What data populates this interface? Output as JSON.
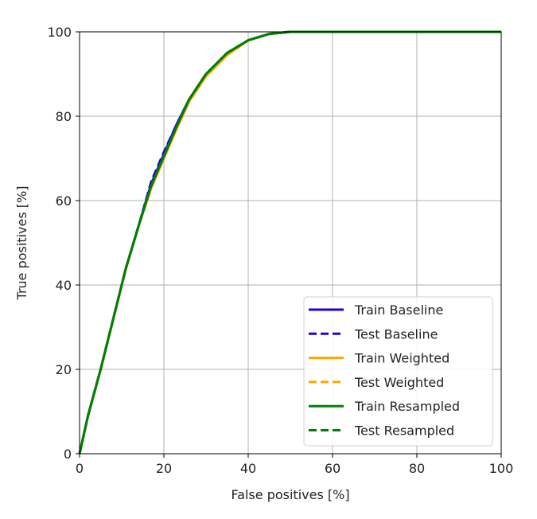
{
  "chart_data": {
    "type": "line",
    "title": "",
    "xlabel": "False positives [%]",
    "ylabel": "True positives [%]",
    "xlim": [
      0,
      100
    ],
    "ylim": [
      0,
      100
    ],
    "xticks": [
      "0",
      "20",
      "40",
      "60",
      "80",
      "100"
    ],
    "yticks": [
      "0",
      "20",
      "40",
      "60",
      "80",
      "100"
    ],
    "grid": true,
    "legend_position": "lower right",
    "series": [
      {
        "name": "Train Baseline",
        "color": "#1f00e6",
        "dash": "solid",
        "points": [
          [
            0,
            0
          ],
          [
            2,
            9
          ],
          [
            5,
            20
          ],
          [
            8,
            32
          ],
          [
            11,
            44
          ],
          [
            14,
            54
          ],
          [
            17,
            64
          ],
          [
            20,
            71
          ],
          [
            23,
            78
          ],
          [
            26,
            84
          ],
          [
            30,
            90
          ],
          [
            35,
            95
          ],
          [
            40,
            98
          ],
          [
            45,
            99.5
          ],
          [
            50,
            100
          ],
          [
            60,
            100
          ],
          [
            80,
            100
          ],
          [
            100,
            100
          ]
        ]
      },
      {
        "name": "Test Baseline",
        "color": "#1f00e6",
        "dash": "dashed",
        "points": [
          [
            0,
            0
          ],
          [
            2,
            9
          ],
          [
            5,
            20
          ],
          [
            8,
            32
          ],
          [
            11,
            44
          ],
          [
            14,
            54
          ],
          [
            17,
            64.5
          ],
          [
            20,
            71.5
          ],
          [
            23,
            78
          ],
          [
            26,
            84
          ],
          [
            30,
            90
          ],
          [
            35,
            95
          ],
          [
            40,
            98
          ],
          [
            45,
            99.5
          ],
          [
            50,
            100
          ],
          [
            60,
            100
          ],
          [
            80,
            100
          ],
          [
            100,
            100
          ]
        ]
      },
      {
        "name": "Train Weighted",
        "color": "#ffa500",
        "dash": "solid",
        "points": [
          [
            0,
            0
          ],
          [
            2,
            9
          ],
          [
            5,
            20
          ],
          [
            8,
            32
          ],
          [
            11,
            44
          ],
          [
            14,
            54
          ],
          [
            17,
            63
          ],
          [
            20,
            70
          ],
          [
            23,
            77
          ],
          [
            26,
            83.5
          ],
          [
            30,
            89.5
          ],
          [
            35,
            94.5
          ],
          [
            40,
            98
          ],
          [
            45,
            99.5
          ],
          [
            50,
            100
          ],
          [
            60,
            100
          ],
          [
            80,
            100
          ],
          [
            100,
            100
          ]
        ]
      },
      {
        "name": "Test Weighted",
        "color": "#ffa500",
        "dash": "dashed",
        "points": [
          [
            0,
            0
          ],
          [
            2,
            9
          ],
          [
            5,
            20
          ],
          [
            8,
            32
          ],
          [
            11,
            44
          ],
          [
            14,
            54
          ],
          [
            17,
            63
          ],
          [
            20,
            70
          ],
          [
            23,
            77
          ],
          [
            26,
            83.5
          ],
          [
            30,
            89.5
          ],
          [
            35,
            94.5
          ],
          [
            40,
            98
          ],
          [
            45,
            99.5
          ],
          [
            50,
            100
          ],
          [
            60,
            100
          ],
          [
            80,
            100
          ],
          [
            100,
            100
          ]
        ]
      },
      {
        "name": "Train Resampled",
        "color": "#008000",
        "dash": "solid",
        "points": [
          [
            0,
            0
          ],
          [
            2,
            9
          ],
          [
            5,
            20
          ],
          [
            8,
            32
          ],
          [
            11,
            44
          ],
          [
            14,
            54
          ],
          [
            17,
            63.5
          ],
          [
            20,
            70.5
          ],
          [
            23,
            77.5
          ],
          [
            26,
            84
          ],
          [
            30,
            90
          ],
          [
            35,
            95
          ],
          [
            40,
            98
          ],
          [
            45,
            99.5
          ],
          [
            50,
            100
          ],
          [
            60,
            100
          ],
          [
            80,
            100
          ],
          [
            100,
            100
          ]
        ]
      },
      {
        "name": "Test Resampled",
        "color": "#008000",
        "dash": "dashed",
        "points": [
          [
            0,
            0
          ],
          [
            2,
            9
          ],
          [
            5,
            20
          ],
          [
            8,
            32
          ],
          [
            11,
            44
          ],
          [
            14,
            54
          ],
          [
            17,
            63.5
          ],
          [
            20,
            70.5
          ],
          [
            23,
            77.5
          ],
          [
            26,
            84
          ],
          [
            30,
            90
          ],
          [
            35,
            95
          ],
          [
            40,
            98
          ],
          [
            45,
            99.5
          ],
          [
            50,
            100
          ],
          [
            60,
            100
          ],
          [
            80,
            100
          ],
          [
            100,
            100
          ]
        ]
      }
    ]
  }
}
